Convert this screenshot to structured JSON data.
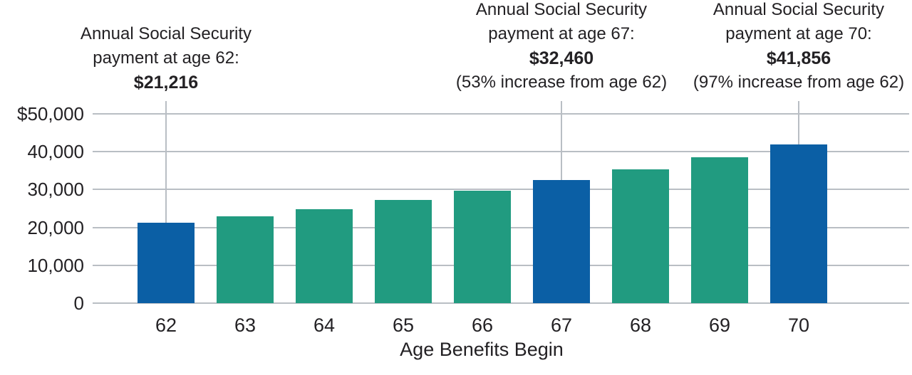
{
  "chart_data": {
    "type": "bar",
    "title": "",
    "xlabel": "Age Benefits Begin",
    "ylabel": "",
    "categories": [
      "62",
      "63",
      "64",
      "65",
      "66",
      "67",
      "68",
      "69",
      "70"
    ],
    "values": [
      21216,
      22992,
      24768,
      27192,
      29616,
      32460,
      35424,
      38592,
      41856
    ],
    "bar_colors": [
      "blue",
      "green",
      "green",
      "green",
      "green",
      "blue",
      "green",
      "green",
      "blue"
    ],
    "ylim": [
      0,
      50000
    ],
    "ytick_labels": [
      "$50,000",
      "40,000",
      "30,000",
      "20,000",
      "10,000",
      "0"
    ],
    "grid": "horizontal",
    "legend": "none",
    "highlighted_ages": [
      "62",
      "67",
      "70"
    ]
  },
  "annotations": [
    {
      "age": "62",
      "line1": "Annual Social Security",
      "line2": "payment at age 62:",
      "amount": "$21,216",
      "note": ""
    },
    {
      "age": "67",
      "line1": "Annual Social Security",
      "line2": "payment at age 67:",
      "amount": "$32,460",
      "note": "(53% increase from age 62)"
    },
    {
      "age": "70",
      "line1": "Annual Social Security",
      "line2": "payment at age 70:",
      "amount": "$41,856",
      "note": "(97% increase from age 62)"
    }
  ],
  "colors": {
    "blue": "#0b5fa5",
    "green": "#219b80",
    "gridline": "#b9bec4",
    "text": "#232124"
  }
}
